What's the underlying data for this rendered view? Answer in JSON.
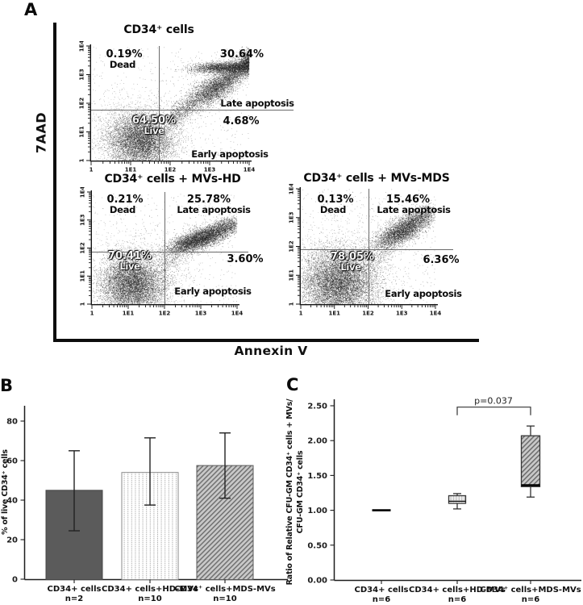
{
  "figure": {
    "panels": {
      "a": {
        "letter": "A"
      },
      "b": {
        "letter": "B"
      },
      "c": {
        "letter": "C"
      }
    },
    "colors": {
      "ink": "#111111",
      "scatter_dot": "#202020",
      "quadrant_line": "#6a6a6a",
      "bar_solid": "#5b5b5b",
      "hatch_gray": "#c9c9c9"
    }
  },
  "chart_data": [
    {
      "type": "scatter",
      "panel": "A",
      "xlabel": "Annexin V",
      "ylabel": "7AAD",
      "axis_scale": "log10",
      "xlim": [
        "1",
        "1E4"
      ],
      "ylim": [
        "1",
        "1E4"
      ],
      "axis_tick_labels": [
        "1",
        "1E1",
        "1E2",
        "1E3",
        "1E4"
      ],
      "plots": [
        {
          "title": "CD34⁺ cells",
          "quadrants": {
            "dead_pct": "0.19%",
            "dead_label": "Dead",
            "late_pct": "30.64%",
            "late_label": "Late apoptosis",
            "live_pct": "64.50%",
            "live_label": "Live",
            "early_pct": "4.68%",
            "early_label": "Early apoptosis"
          },
          "populations": [
            {
              "region": "live",
              "shape": "gauss",
              "x": 1.25,
              "y": 0.72,
              "sx": 0.4,
              "sy": 0.46,
              "rho": 0,
              "n": 6500
            },
            {
              "region": "live-halo",
              "shape": "gauss",
              "x": 1.22,
              "y": 0.85,
              "sx": 0.62,
              "sy": 0.72,
              "rho": 0,
              "n": 1700
            },
            {
              "region": "apoptotic-band",
              "shape": "band",
              "x0": 2.0,
              "x1": 4.05,
              "offset": -0.55,
              "spread": 0.22,
              "bias": 0.7,
              "n": 5200
            },
            {
              "region": "late-top",
              "shape": "gauss",
              "x": 3.35,
              "y": 3.25,
              "sx": 0.42,
              "sy": 0.1,
              "rho": 0.2,
              "n": 2400
            },
            {
              "region": "late-mid",
              "shape": "gauss",
              "x": 3.12,
              "y": 2.5,
              "sx": 0.3,
              "sy": 0.3,
              "rho": 0.5,
              "n": 1700
            },
            {
              "region": "background",
              "shape": "uniform",
              "n": 600
            }
          ]
        },
        {
          "title": "CD34⁺ cells + MVs-HD",
          "quadrants": {
            "dead_pct": "0.21%",
            "dead_label": "Dead",
            "late_pct": "25.78%",
            "late_label": "Late apoptosis",
            "live_pct": "70.41%",
            "live_label": "Live",
            "early_pct": "3.60%",
            "early_label": "Early apoptosis"
          },
          "populations": [
            {
              "region": "live",
              "shape": "gauss",
              "x": 1.12,
              "y": 0.7,
              "sx": 0.44,
              "sy": 0.5,
              "rho": 0,
              "n": 7000
            },
            {
              "region": "live-halo",
              "shape": "gauss",
              "x": 1.12,
              "y": 0.9,
              "sx": 0.68,
              "sy": 0.78,
              "rho": 0,
              "n": 1500
            },
            {
              "region": "late",
              "shape": "gauss",
              "x": 3.0,
              "y": 2.35,
              "sx": 0.46,
              "sy": 0.27,
              "rho": 0.75,
              "n": 5000
            },
            {
              "region": "late-tail",
              "shape": "gauss",
              "x": 3.72,
              "y": 2.82,
              "sx": 0.27,
              "sy": 0.17,
              "rho": 0.5,
              "n": 700
            },
            {
              "region": "bridge",
              "shape": "band",
              "x0": 1.9,
              "x1": 2.7,
              "offset": -0.6,
              "spread": 0.25,
              "bias": 0,
              "n": 420
            },
            {
              "region": "background",
              "shape": "uniform",
              "n": 600
            }
          ]
        },
        {
          "title": "CD34⁺ cells + MVs-MDS",
          "quadrants": {
            "dead_pct": "0.13%",
            "dead_label": "Dead",
            "late_pct": "15.46%",
            "late_label": "Late apoptosis",
            "live_pct": "78.05%",
            "live_label": "Live",
            "early_pct": "6.36%",
            "early_label": "Early apoptosis"
          },
          "populations": [
            {
              "region": "live",
              "shape": "gauss",
              "x": 1.12,
              "y": 0.72,
              "sx": 0.55,
              "sy": 0.58,
              "rho": 0,
              "n": 8000
            },
            {
              "region": "live-halo",
              "shape": "gauss",
              "x": 1.12,
              "y": 0.95,
              "sx": 0.74,
              "sy": 0.85,
              "rho": 0,
              "n": 1800
            },
            {
              "region": "late",
              "shape": "gauss",
              "x": 3.02,
              "y": 2.55,
              "sx": 0.4,
              "sy": 0.3,
              "rho": 0.7,
              "n": 3600
            },
            {
              "region": "late-tail",
              "shape": "gauss",
              "x": 3.52,
              "y": 3.05,
              "sx": 0.27,
              "sy": 0.2,
              "rho": 0.5,
              "n": 650
            },
            {
              "region": "bridge",
              "shape": "band",
              "x0": 1.9,
              "x1": 2.8,
              "offset": -0.65,
              "spread": 0.3,
              "bias": 0,
              "n": 380
            },
            {
              "region": "background",
              "shape": "uniform",
              "n": 650
            }
          ]
        }
      ]
    },
    {
      "type": "bar",
      "panel": "B",
      "ylabel": "% of live CD34⁺ cells",
      "yticks": [
        0,
        20,
        40,
        60,
        80
      ],
      "ylim": [
        0,
        88
      ],
      "categories": [
        {
          "line1": "CD34+ cells",
          "line2": "n=2"
        },
        {
          "line1": "CD34+ cells+HD-MVs",
          "line2": "n=10"
        },
        {
          "line1": "CD34⁺ cells+MDS-MVs",
          "line2": "n=10"
        }
      ],
      "values": [
        45,
        54,
        57.5
      ],
      "error_low": [
        24.5,
        37.5,
        41
      ],
      "error_high": [
        65,
        71.5,
        74
      ],
      "bar_styles": [
        "solid-dark-gray",
        "dotted-vertical-white",
        "diagonal-hatch-gray"
      ]
    },
    {
      "type": "box",
      "panel": "C",
      "ylabel_line1": "Ratio of Relative CFU-GM CD34⁺ cells + MVs/",
      "ylabel_line2": "CFU-GM CD34⁺ cells",
      "yticks": [
        "0.00",
        "0.50",
        "1.00",
        "1.50",
        "2.00",
        "2.50"
      ],
      "ylim": [
        0,
        2.72
      ],
      "categories": [
        {
          "line1": "CD34+ cells",
          "line2": "n=6"
        },
        {
          "line1": "CD34+ cells+HD-MVs",
          "line2": "n=6"
        },
        {
          "line1": "CD34⁺ cells+MDS-MVs",
          "line2": "n=6"
        }
      ],
      "boxes": [
        {
          "style": "reference-line",
          "value": 1.0
        },
        {
          "style": "dotted-fill",
          "q1": 1.1,
          "median": 1.13,
          "q3": 1.21,
          "whisker_low": 1.02,
          "whisker_high": 1.24
        },
        {
          "style": "diagonal-hatch",
          "q1": 1.34,
          "median": 1.36,
          "q3": 2.07,
          "whisker_low": 1.19,
          "whisker_high": 2.21
        }
      ],
      "significance": {
        "text": "p=0.037",
        "between": [
          1,
          2
        ],
        "bracket_y": 2.48
      }
    }
  ]
}
